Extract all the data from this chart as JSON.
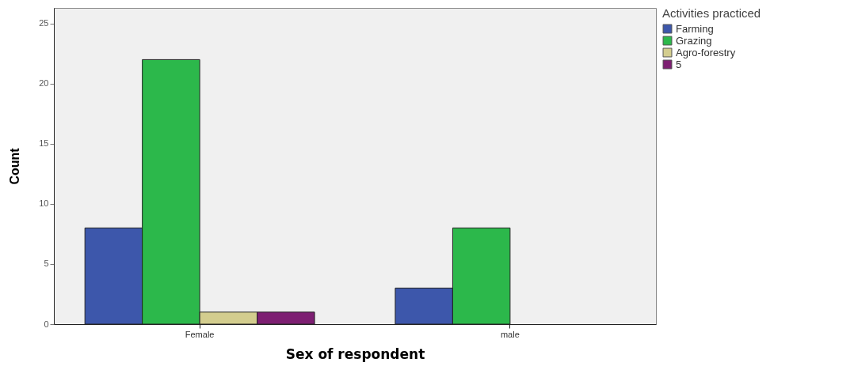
{
  "chart_data": {
    "type": "bar",
    "xlabel": "Sex of respondent",
    "ylabel": "Count",
    "legend_title": "Activities practiced",
    "legend": "right",
    "categories": [
      "Female",
      "male"
    ],
    "series": [
      {
        "name": "Farming",
        "color": "#3d57ab",
        "values": [
          8,
          3
        ]
      },
      {
        "name": "Grazing",
        "color": "#2cb84b",
        "values": [
          22,
          8
        ]
      },
      {
        "name": "Agro-forestry",
        "color": "#d3cd8e",
        "values": [
          1,
          null
        ]
      },
      {
        "name": "5",
        "color": "#7d1f72",
        "values": [
          1,
          null
        ]
      }
    ],
    "ylim": [
      0,
      26.3
    ],
    "yticks": [
      0,
      5,
      10,
      15,
      20,
      25
    ],
    "grid": false
  }
}
